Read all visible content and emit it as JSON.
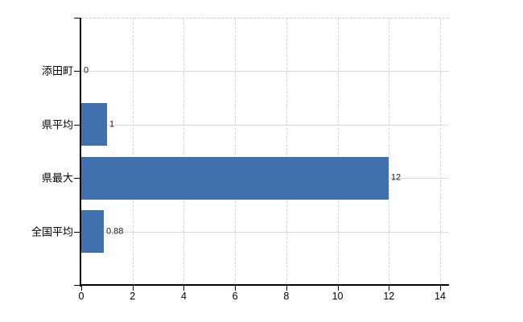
{
  "chart_data": {
    "type": "bar",
    "orientation": "horizontal",
    "categories": [
      "添田町",
      "県平均",
      "県最大",
      "全国平均"
    ],
    "values": [
      0,
      1,
      12,
      0.88
    ],
    "value_labels": [
      "0",
      "1",
      "12",
      "0.88"
    ],
    "x_ticks": [
      0,
      2,
      4,
      6,
      8,
      10,
      12,
      14
    ],
    "x_tick_labels": [
      "0",
      "2",
      "4",
      "6",
      "8",
      "10",
      "12",
      "14"
    ],
    "xlim": [
      0,
      14.35
    ],
    "grid": {
      "horizontal": "solid",
      "vertical": "dashed",
      "top_border": "dashed"
    },
    "legend": "none",
    "colors": {
      "bar": "#4070ae",
      "h_grid": "#d6ddd3",
      "v_grid": "#d7d3da",
      "top_border": "#c9c9c9",
      "axis": "#000000",
      "text": "#000000",
      "value_text": "#1a1a1a",
      "background": "#ffffff"
    }
  }
}
